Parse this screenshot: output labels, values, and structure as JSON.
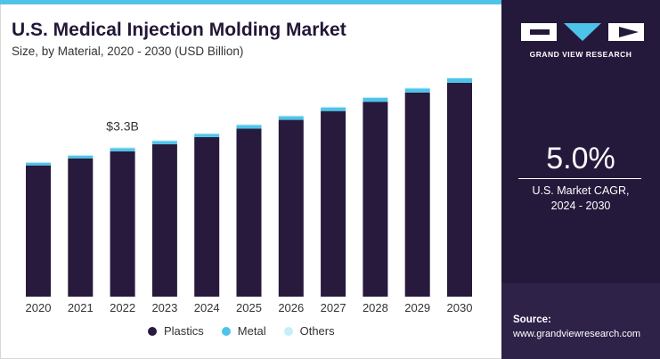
{
  "header": {
    "title": "U.S. Medical Injection Molding Market",
    "subtitle": "Size, by Material, 2020 - 2030 (USD Billion)"
  },
  "colors": {
    "plastics": "#271a3d",
    "metal": "#4ec3ea",
    "others": "#c7eefb",
    "panel": "#24193b",
    "accent": "#4ec3ea"
  },
  "chart_data": {
    "type": "bar",
    "stacked": true,
    "categories": [
      "2020",
      "2021",
      "2022",
      "2023",
      "2024",
      "2025",
      "2026",
      "2027",
      "2028",
      "2029",
      "2030"
    ],
    "series": [
      {
        "name": "Plastics",
        "values": [
          2.97,
          3.13,
          3.29,
          3.45,
          3.61,
          3.8,
          4.0,
          4.2,
          4.41,
          4.62,
          4.84
        ]
      },
      {
        "name": "Metal",
        "values": [
          0.06,
          0.06,
          0.07,
          0.07,
          0.07,
          0.08,
          0.08,
          0.08,
          0.09,
          0.09,
          0.1
        ]
      },
      {
        "name": "Others",
        "values": [
          0.02,
          0.02,
          0.02,
          0.02,
          0.02,
          0.02,
          0.02,
          0.02,
          0.02,
          0.02,
          0.02
        ]
      }
    ],
    "annotations": [
      {
        "category": "2022",
        "label": "$3.3B"
      }
    ],
    "ylim": [
      0,
      5.1
    ],
    "grid": false,
    "legend_position": "bottom"
  },
  "legend": {
    "items": [
      "Plastics",
      "Metal",
      "Others"
    ]
  },
  "panel": {
    "logo_icon": "grand-view-research-logo",
    "logo_text": "GRAND VIEW RESEARCH",
    "cagr_value": "5.0%",
    "cagr_label_line1": "U.S. Market CAGR,",
    "cagr_label_line2": "2024 - 2030",
    "source_title": "Source:",
    "source_url": "www.grandviewresearch.com"
  }
}
